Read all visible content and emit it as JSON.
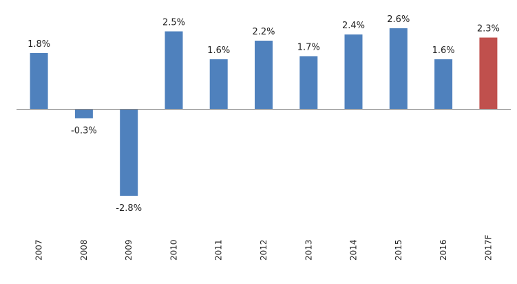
{
  "chart_data": {
    "type": "bar",
    "categories": [
      "2007",
      "2008",
      "2009",
      "2010",
      "2011",
      "2012",
      "2013",
      "2014",
      "2015",
      "2016",
      "2017F"
    ],
    "values": [
      1.8,
      -0.3,
      -2.8,
      2.5,
      1.6,
      2.2,
      1.7,
      2.4,
      2.6,
      1.6,
      2.3
    ],
    "data_labels": [
      "1.8%",
      "-0.3%",
      "-2.8%",
      "2.5%",
      "1.6%",
      "2.2%",
      "1.7%",
      "2.4%",
      "2.6%",
      "1.6%",
      "2.3%"
    ],
    "forecast_index": 10,
    "title": "",
    "xlabel": "",
    "ylabel": "",
    "ylim": [
      -3,
      3
    ],
    "grid": false,
    "legend": "none",
    "colors": {
      "bar": "#4f81bd",
      "forecast_bar": "#c0504d",
      "label": "#222222",
      "forecast_label": "#ff0000",
      "axis": "#868686"
    }
  }
}
